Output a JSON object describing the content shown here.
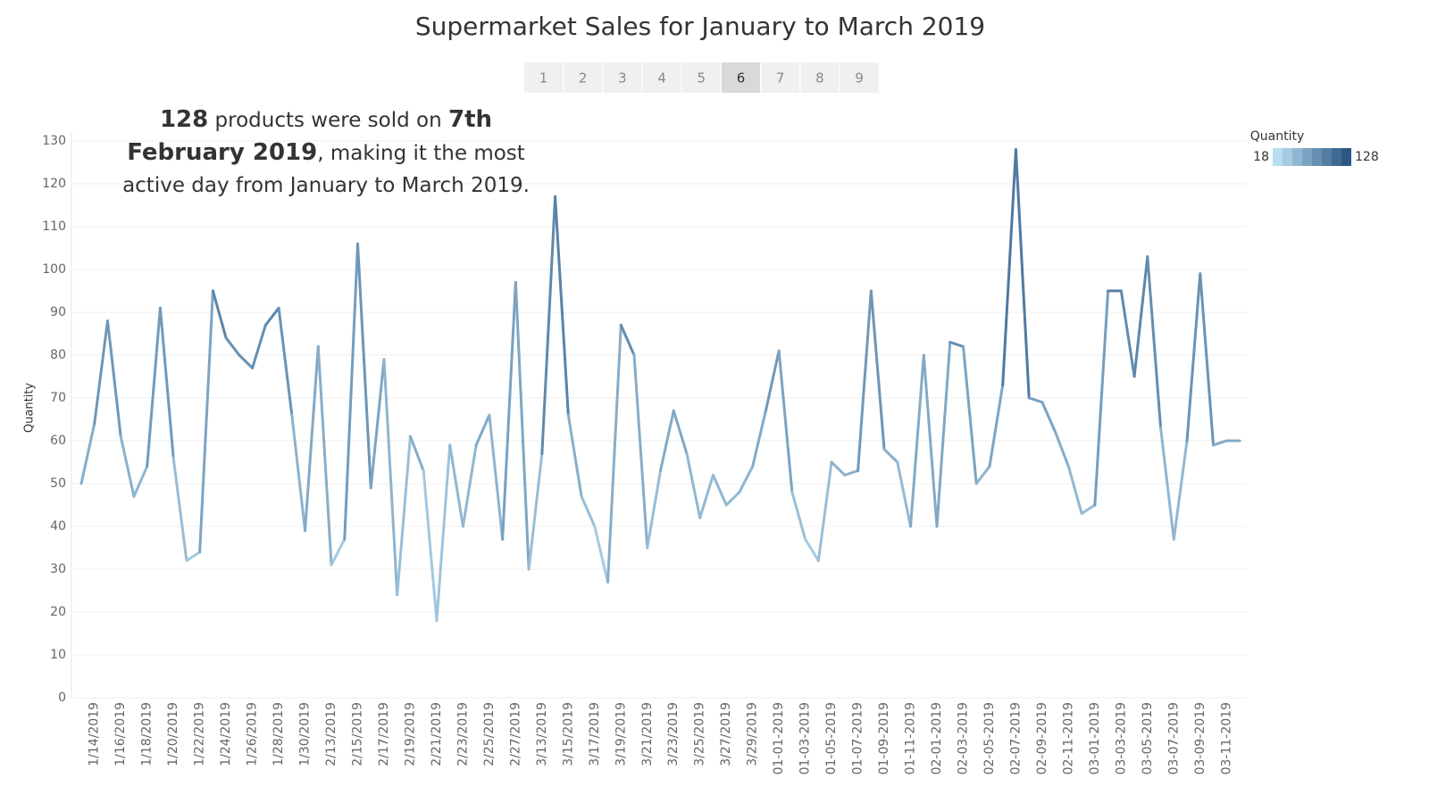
{
  "chart_data": {
    "type": "line",
    "title": "Supermarket Sales for January to March 2019",
    "pagination": {
      "pages": [
        1,
        2,
        3,
        4,
        5,
        6,
        7,
        8,
        9
      ],
      "active": 6
    },
    "annotation": [
      {
        "text": "128",
        "bold": true
      },
      {
        "text": " products were sold on ",
        "bold": false
      },
      {
        "text": "7th February 2019",
        "bold": true
      },
      {
        "text": ", making it the most active day from January to March 2019.",
        "bold": false
      }
    ],
    "y_label": "Quantity",
    "color_scale": {
      "title": "Quantity",
      "min": 18,
      "max": 128,
      "colors": [
        "#b9ddf1",
        "#2a5783"
      ]
    },
    "categories": [
      null,
      "1/14/2019",
      null,
      "1/16/2019",
      null,
      "1/18/2019",
      null,
      "1/20/2019",
      null,
      "1/22/2019",
      null,
      "1/24/2019",
      null,
      "1/26/2019",
      null,
      "1/28/2019",
      null,
      "1/30/2019",
      null,
      "2/13/2019",
      null,
      "2/15/2019",
      null,
      "2/17/2019",
      null,
      "2/19/2019",
      null,
      "2/21/2019",
      null,
      "2/23/2019",
      null,
      "2/25/2019",
      null,
      "2/27/2019",
      null,
      "3/13/2019",
      null,
      "3/15/2019",
      null,
      "3/17/2019",
      null,
      "3/19/2019",
      null,
      "3/21/2019",
      null,
      "3/23/2019",
      null,
      "3/25/2019",
      null,
      "3/27/2019",
      null,
      "3/29/2019",
      null,
      "01-01-2019",
      null,
      "01-03-2019",
      null,
      "01-05-2019",
      null,
      "01-07-2019",
      null,
      "01-09-2019",
      null,
      "01-11-2019",
      null,
      "02-01-2019",
      null,
      "02-03-2019",
      null,
      "02-05-2019",
      null,
      "02-07-2019",
      null,
      "02-09-2019",
      null,
      "02-11-2019",
      null,
      "03-01-2019",
      null,
      "03-03-2019",
      null,
      "03-05-2019",
      null,
      "03-07-2019",
      null,
      "03-09-2019",
      null,
      "03-11-2019",
      null
    ],
    "values": [
      50,
      64,
      88,
      61,
      47,
      54,
      91,
      56,
      32,
      34,
      95,
      84,
      80,
      77,
      87,
      91,
      66,
      39,
      82,
      31,
      37,
      106,
      49,
      79,
      24,
      61,
      53,
      18,
      59,
      40,
      59,
      66,
      37,
      97,
      30,
      57,
      117,
      66,
      47,
      40,
      27,
      87,
      80,
      35,
      53,
      67,
      57,
      42,
      52,
      45,
      48,
      54,
      67,
      81,
      48,
      37,
      32,
      55,
      52,
      53,
      95,
      58,
      55,
      40,
      80,
      40,
      83,
      82,
      50,
      54,
      73,
      128,
      70,
      69,
      62,
      54,
      43,
      45,
      95,
      95,
      75,
      103,
      63,
      37,
      60,
      99,
      59,
      60,
      60
    ],
    "ylim": [
      0,
      130
    ],
    "yticks": [
      0,
      10,
      20,
      30,
      40,
      50,
      60,
      70,
      80,
      90,
      100,
      110,
      120,
      130
    ],
    "grid": true
  }
}
